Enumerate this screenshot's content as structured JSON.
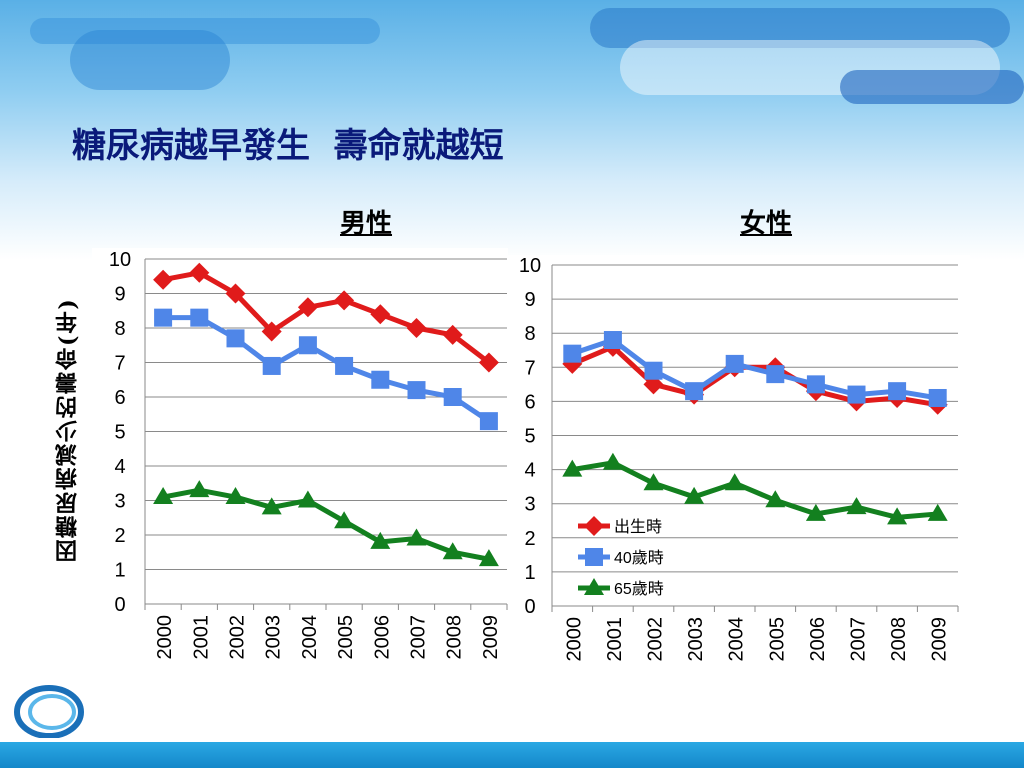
{
  "slide": {
    "title": "糖尿病越早發生  壽命就越短",
    "ylabel": "因糖尿病減少的壽命(年)",
    "colors": {
      "title": "#0a1a7a",
      "red": "#e01b1b",
      "blue": "#4f86e8",
      "green": "#13801f"
    }
  },
  "chart_data": [
    {
      "type": "line",
      "title": "男性",
      "xlabel": "",
      "ylabel": "因糖尿病減少的壽命(年)",
      "ylim": [
        0,
        10
      ],
      "yticks": [
        "0",
        "1",
        "2",
        "3",
        "4",
        "5",
        "6",
        "7",
        "8",
        "9",
        "10"
      ],
      "categories": [
        "2000",
        "2001",
        "2002",
        "2003",
        "2004",
        "2005",
        "2006",
        "2007",
        "2008",
        "2009"
      ],
      "series": [
        {
          "name": "出生時",
          "marker": "diamond",
          "color": "#e01b1b",
          "values": [
            9.4,
            9.6,
            9.0,
            7.9,
            8.6,
            8.8,
            8.4,
            8.0,
            7.8,
            7.0
          ]
        },
        {
          "name": "40歲時",
          "marker": "square",
          "color": "#4f86e8",
          "values": [
            8.3,
            8.3,
            7.7,
            6.9,
            7.5,
            6.9,
            6.5,
            6.2,
            6.0,
            5.3
          ]
        },
        {
          "name": "65歲時",
          "marker": "triangle",
          "color": "#13801f",
          "values": [
            3.1,
            3.3,
            3.1,
            2.8,
            3.0,
            2.4,
            1.8,
            1.9,
            1.5,
            1.3
          ]
        }
      ],
      "grid": true
    },
    {
      "type": "line",
      "title": "女性",
      "xlabel": "",
      "ylabel": "",
      "ylim": [
        0,
        10
      ],
      "yticks": [
        "0",
        "1",
        "2",
        "3",
        "4",
        "5",
        "6",
        "7",
        "8",
        "9",
        "10"
      ],
      "categories": [
        "2000",
        "2001",
        "2002",
        "2003",
        "2004",
        "2005",
        "2006",
        "2007",
        "2008",
        "2009"
      ],
      "series": [
        {
          "name": "出生時",
          "marker": "diamond",
          "color": "#e01b1b",
          "values": [
            7.1,
            7.6,
            6.5,
            6.2,
            7.0,
            7.0,
            6.3,
            6.0,
            6.1,
            5.9
          ]
        },
        {
          "name": "40歲時",
          "marker": "square",
          "color": "#4f86e8",
          "values": [
            7.4,
            7.8,
            6.9,
            6.3,
            7.1,
            6.8,
            6.5,
            6.2,
            6.3,
            6.1
          ]
        },
        {
          "name": "65歲時",
          "marker": "triangle",
          "color": "#13801f",
          "values": [
            4.0,
            4.2,
            3.6,
            3.2,
            3.6,
            3.1,
            2.7,
            2.9,
            2.6,
            2.7
          ]
        }
      ],
      "grid": true,
      "legend": "bottom-left",
      "legend_entries": [
        "出生時",
        "40歲時",
        "65歲時"
      ]
    }
  ]
}
